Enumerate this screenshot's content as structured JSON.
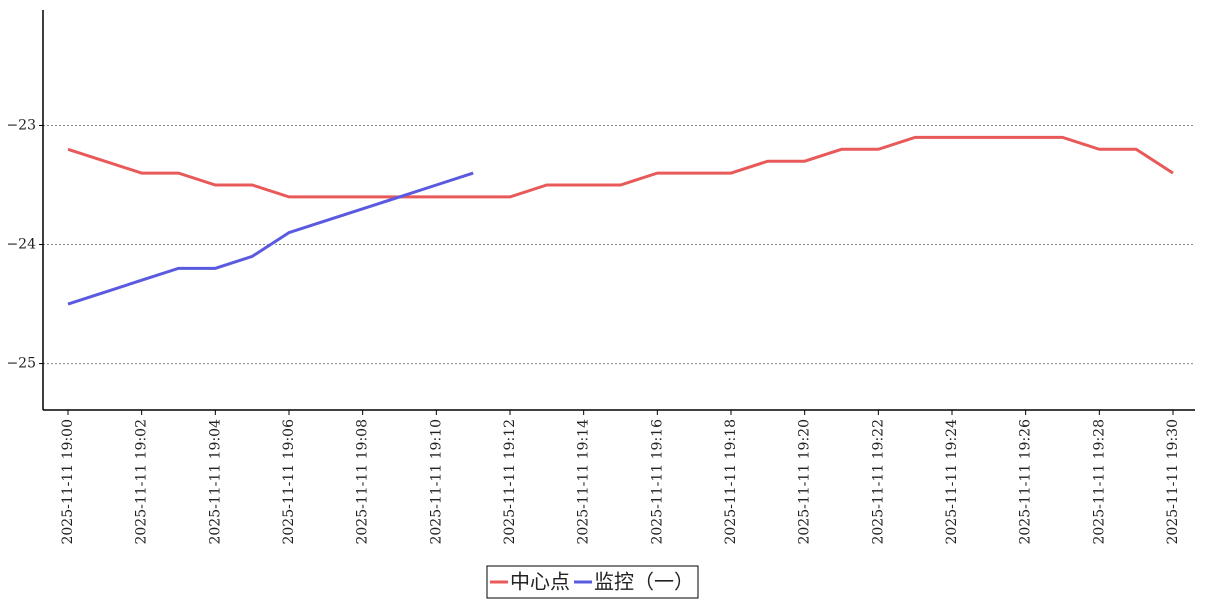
{
  "chart_data": {
    "type": "line",
    "categories": [
      "2025-11-11 19:00",
      null,
      "2025-11-11 19:02",
      null,
      "2025-11-11 19:04",
      null,
      "2025-11-11 19:06",
      null,
      "2025-11-11 19:08",
      null,
      "2025-11-11 19:10",
      null,
      "2025-11-11 19:12",
      null,
      "2025-11-11 19:14",
      null,
      "2025-11-11 19:16",
      null,
      "2025-11-11 19:18",
      null,
      "2025-11-11 19:20",
      null,
      "2025-11-11 19:22",
      null,
      "2025-11-11 19:24",
      null,
      "2025-11-11 19:26",
      null,
      "2025-11-11 19:28",
      null,
      "2025-11-11 19:30"
    ],
    "series": [
      {
        "name": "中心点",
        "color": "#e85a5a",
        "values": [
          -23.2,
          -23.3,
          -23.4,
          -23.4,
          -23.5,
          -23.5,
          -23.6,
          -23.6,
          -23.6,
          -23.6,
          -23.6,
          -23.6,
          -23.6,
          -23.5,
          -23.5,
          -23.5,
          -23.4,
          -23.4,
          -23.4,
          -23.3,
          -23.3,
          -23.2,
          -23.2,
          -23.1,
          -23.1,
          -23.1,
          -23.1,
          -23.1,
          -23.2,
          -23.2,
          -23.4
        ]
      },
      {
        "name": "监控（一）",
        "color": "#5a5ae0",
        "values": [
          -24.5,
          -24.4,
          -24.3,
          -24.2,
          -24.2,
          -24.1,
          -23.9,
          -23.8,
          -23.7,
          -23.6,
          -23.5,
          -23.4,
          null,
          null,
          null,
          null,
          null,
          null,
          null,
          null,
          null,
          null,
          null,
          null,
          null,
          null,
          null,
          null,
          null,
          null,
          null
        ]
      }
    ],
    "ylim": [
      -25.39,
      -22.03
    ],
    "yticks": [
      {
        "value": -25,
        "label": "−25"
      },
      {
        "value": -24,
        "label": "−24"
      },
      {
        "value": -23,
        "label": "−23"
      }
    ],
    "grid": true,
    "legend": "bottom"
  }
}
